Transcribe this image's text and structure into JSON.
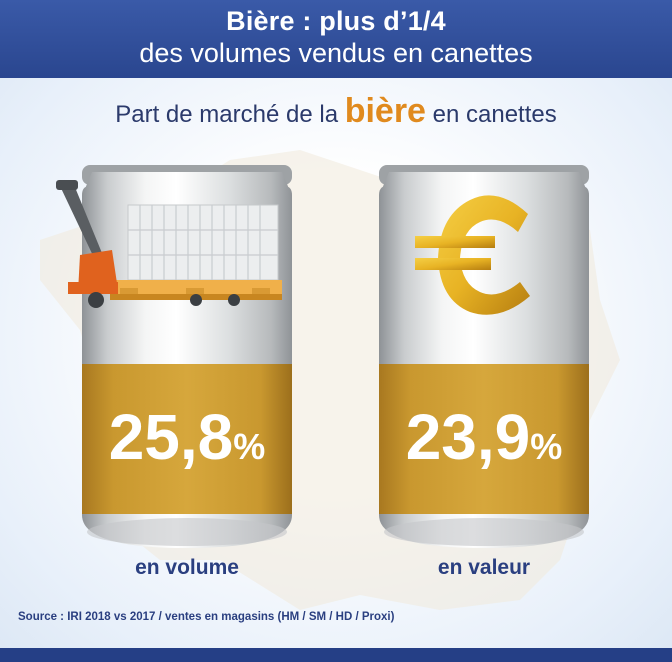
{
  "header": {
    "line1": "Bière : plus d’1/4",
    "line2": "des volumes vendus en canettes"
  },
  "subtitle": {
    "before": "Part de marché de la ",
    "highlight": "bière",
    "after": " en canettes"
  },
  "cans": [
    {
      "value": "25,8",
      "unit": "%",
      "label": "en volume",
      "icon": "pallet-truck-icon"
    },
    {
      "value": "23,9",
      "unit": "%",
      "label": "en valeur",
      "icon": "euro-icon"
    }
  ],
  "source": "Source : IRI 2018 vs 2017 / ventes en magasins (HM / SM / HD / Proxi)",
  "colors": {
    "header": "#2f4d9a",
    "gold_band": "#c9982f",
    "highlight": "#e08a1e",
    "text_navy": "#2a3f80",
    "pallet_truck": "#e0621e"
  }
}
